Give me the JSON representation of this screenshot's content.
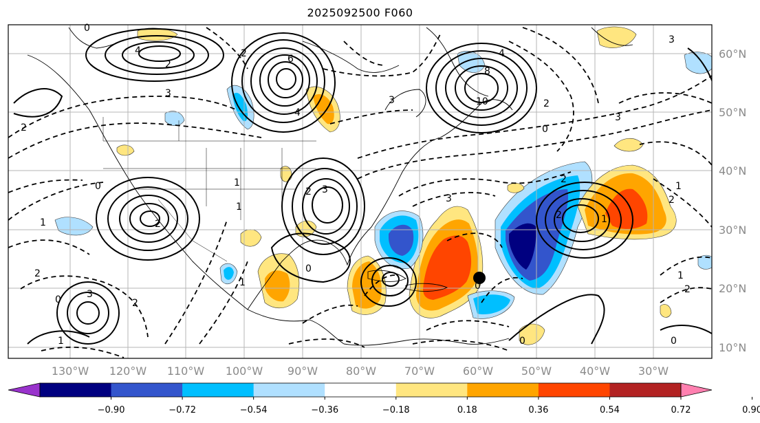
{
  "title": "2025092500 F060",
  "lat_labels": [
    "60°N",
    "50°N",
    "40°N",
    "30°N",
    "20°N",
    "10°N"
  ],
  "lon_labels": [
    "130°W",
    "120°W",
    "110°W",
    "100°W",
    "90°W",
    "80°W",
    "70°W",
    "60°W",
    "50°W",
    "40°W",
    "30°W"
  ],
  "colorbar": {
    "ticks": [
      "−0.90",
      "−0.72",
      "−0.54",
      "−0.36",
      "−0.18",
      "0.18",
      "0.36",
      "0.54",
      "0.72",
      "0.90"
    ],
    "colors": [
      "#9933cc",
      "#000080",
      "#3355cc",
      "#00bfff",
      "#b0e0ff",
      "#ffffff",
      "#ffe680",
      "#ffa500",
      "#ff4500",
      "#b22222",
      "#ff80b0"
    ]
  },
  "contour_labels": [
    "0",
    "4",
    "2",
    "6",
    "2",
    "4",
    "10",
    "3",
    "4",
    "2",
    "3",
    "2",
    "1",
    "0",
    "2",
    "3",
    "2",
    "1",
    "0",
    "3",
    "2",
    "1",
    "0",
    "3",
    "2",
    "2",
    "1",
    "0",
    "1",
    "3",
    "0",
    "2",
    "1",
    "2",
    "1",
    "3",
    "0",
    "2",
    "1",
    "0",
    "8"
  ],
  "marker": "black-dot"
}
